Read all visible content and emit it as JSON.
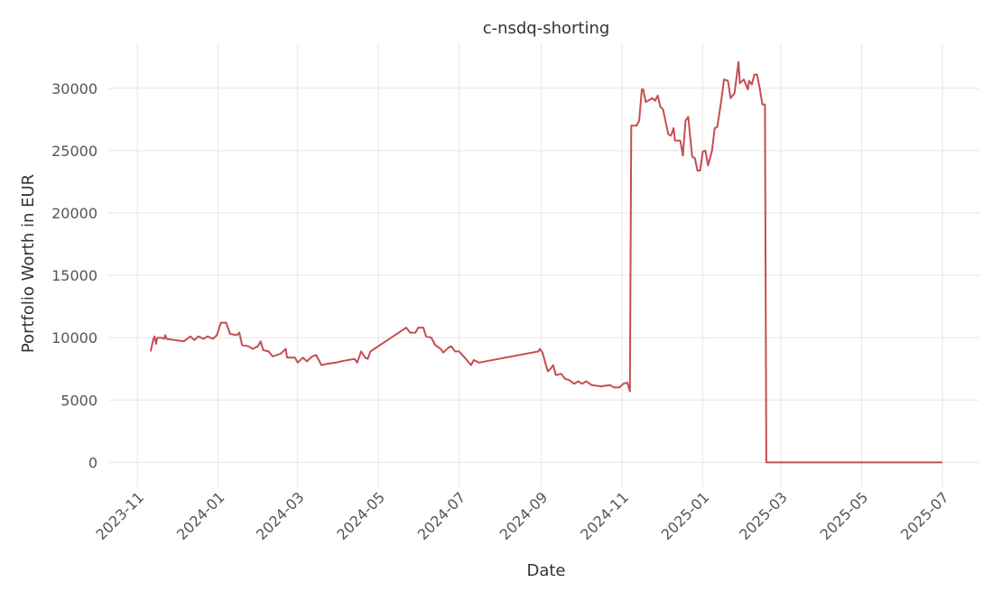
{
  "chart_data": {
    "type": "line",
    "title": "c-nsdq-shorting",
    "x_label": "Date",
    "y_label": "Portfolio Worth in EUR",
    "color": "#c44e52",
    "grid": true,
    "xlim": [
      19640,
      20298
    ],
    "xticks": [
      {
        "value": 19662,
        "label": "2023-11"
      },
      {
        "value": 19723,
        "label": "2024-01"
      },
      {
        "value": 19783,
        "label": "2024-03"
      },
      {
        "value": 19844,
        "label": "2024-05"
      },
      {
        "value": 19905,
        "label": "2024-07"
      },
      {
        "value": 19967,
        "label": "2024-09"
      },
      {
        "value": 20028,
        "label": "2024-11"
      },
      {
        "value": 20089,
        "label": "2025-01"
      },
      {
        "value": 20148,
        "label": "2025-03"
      },
      {
        "value": 20209,
        "label": "2025-05"
      },
      {
        "value": 20270,
        "label": "2025-07"
      }
    ],
    "ylim": [
      -2000,
      33600
    ],
    "yticks": [
      0,
      5000,
      10000,
      15000,
      20000,
      25000,
      30000
    ],
    "x": [
      19672,
      19674,
      19675,
      19676,
      19677,
      19680,
      19682,
      19683,
      19684,
      19697,
      19702,
      19705,
      19708,
      19712,
      19715,
      19719,
      19722,
      19725,
      19729,
      19732,
      19737,
      19739,
      19741,
      19746,
      19749,
      19753,
      19755,
      19757,
      19761,
      19764,
      19770,
      19774,
      19775,
      19781,
      19783,
      19787,
      19790,
      19794,
      19797,
      19801,
      19805,
      19812,
      19816,
      19821,
      19826,
      19828,
      19831,
      19834,
      19836,
      19838,
      19865,
      19868,
      19872,
      19874,
      19878,
      19880,
      19884,
      19887,
      19891,
      19893,
      19897,
      19899,
      19902,
      19905,
      19910,
      19914,
      19916,
      19920,
      19965,
      19966,
      19968,
      19970,
      19972,
      19974,
      19976,
      19978,
      19982,
      19985,
      19988,
      19992,
      19995,
      19998,
      20001,
      20005,
      20012,
      20019,
      20022,
      20026,
      20029,
      20032,
      20034,
      20035,
      20039,
      20041,
      20043,
      20044,
      20046,
      20051,
      20053,
      20055,
      20057,
      20059,
      20061,
      20063,
      20065,
      20067,
      20068,
      20072,
      20074,
      20076,
      20078,
      20081,
      20083,
      20085,
      20087,
      20089,
      20091,
      20093,
      20096,
      20098,
      20100,
      20103,
      20105,
      20108,
      20110,
      20113,
      20116,
      20117,
      20120,
      20123,
      20124,
      20126,
      20128,
      20130,
      20132,
      20134,
      20136,
      20137,
      20270
    ],
    "values": [
      8900,
      9900,
      10100,
      9500,
      10000,
      10000,
      9900,
      10200,
      9900,
      9700,
      10100,
      9800,
      10100,
      9900,
      10100,
      9900,
      10200,
      11200,
      11200,
      10300,
      10200,
      10400,
      9400,
      9300,
      9100,
      9300,
      9700,
      9000,
      8900,
      8500,
      8700,
      9100,
      8400,
      8400,
      8000,
      8400,
      8100,
      8500,
      8600,
      7800,
      7900,
      8000,
      8100,
      8200,
      8300,
      8000,
      8900,
      8400,
      8300,
      8900,
      10800,
      10400,
      10400,
      10800,
      10800,
      10100,
      10000,
      9400,
      9100,
      8800,
      9200,
      9300,
      8900,
      8900,
      8300,
      7800,
      8200,
      8000,
      8900,
      9100,
      8800,
      8000,
      7300,
      7500,
      7800,
      7000,
      7100,
      6700,
      6600,
      6300,
      6500,
      6300,
      6500,
      6200,
      6100,
      6200,
      6000,
      6000,
      6300,
      6400,
      5700,
      27000,
      27000,
      27400,
      29900,
      29900,
      28900,
      29200,
      29000,
      29400,
      28500,
      28300,
      27300,
      26300,
      26200,
      26800,
      25800,
      25800,
      24600,
      27400,
      27700,
      24500,
      24400,
      23400,
      23400,
      24900,
      25000,
      23800,
      25000,
      26800,
      26900,
      29000,
      30700,
      30600,
      29200,
      29600,
      32100,
      30400,
      30700,
      29900,
      30600,
      30300,
      31100,
      31100,
      30000,
      28700,
      28700,
      0,
      0
    ]
  }
}
